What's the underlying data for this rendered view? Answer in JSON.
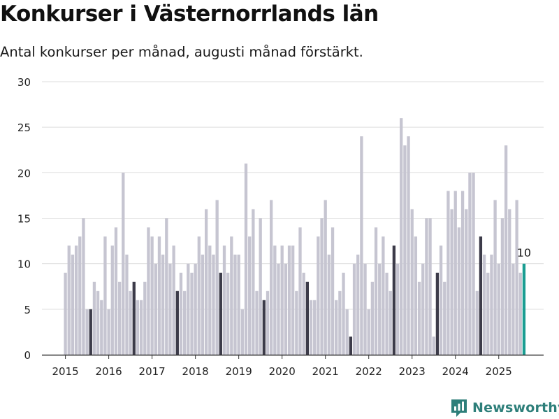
{
  "header": {
    "title": "Konkurser i Västernorrlands län",
    "subtitle": "Antal konkurser per månad, augusti månad förstärkt."
  },
  "brand": {
    "name": "Newsworthy"
  },
  "colors": {
    "bar": "#c6c5d1",
    "highlight": "#3c3b49",
    "latest": "#1a9d92",
    "grid": "#dcdcdc",
    "axis": "#333333",
    "brand": "#2e7f7a"
  },
  "chart_data": {
    "type": "bar",
    "title": "Konkurser i Västernorrlands län",
    "subtitle": "Antal konkurser per månad, augusti månad förstärkt.",
    "xlabel": "",
    "ylabel": "",
    "ylim": [
      0,
      30
    ],
    "yticks": [
      0,
      5,
      10,
      15,
      20,
      25,
      30
    ],
    "grid": true,
    "legend": "none",
    "start_month": "2015-01",
    "highlight_month": "augusti",
    "x_tick_labels": [
      "2015",
      "2016",
      "2017",
      "2018",
      "2019",
      "2020",
      "2021",
      "2022",
      "2023",
      "2024",
      "2025"
    ],
    "annotation": {
      "month": "2025-08",
      "label": "10"
    },
    "categories": [
      "2015-01",
      "2015-02",
      "2015-03",
      "2015-04",
      "2015-05",
      "2015-06",
      "2015-07",
      "2015-08",
      "2015-09",
      "2015-10",
      "2015-11",
      "2015-12",
      "2016-01",
      "2016-02",
      "2016-03",
      "2016-04",
      "2016-05",
      "2016-06",
      "2016-07",
      "2016-08",
      "2016-09",
      "2016-10",
      "2016-11",
      "2016-12",
      "2017-01",
      "2017-02",
      "2017-03",
      "2017-04",
      "2017-05",
      "2017-06",
      "2017-07",
      "2017-08",
      "2017-09",
      "2017-10",
      "2017-11",
      "2017-12",
      "2018-01",
      "2018-02",
      "2018-03",
      "2018-04",
      "2018-05",
      "2018-06",
      "2018-07",
      "2018-08",
      "2018-09",
      "2018-10",
      "2018-11",
      "2018-12",
      "2019-01",
      "2019-02",
      "2019-03",
      "2019-04",
      "2019-05",
      "2019-06",
      "2019-07",
      "2019-08",
      "2019-09",
      "2019-10",
      "2019-11",
      "2019-12",
      "2020-01",
      "2020-02",
      "2020-03",
      "2020-04",
      "2020-05",
      "2020-06",
      "2020-07",
      "2020-08",
      "2020-09",
      "2020-10",
      "2020-11",
      "2020-12",
      "2021-01",
      "2021-02",
      "2021-03",
      "2021-04",
      "2021-05",
      "2021-06",
      "2021-07",
      "2021-08",
      "2021-09",
      "2021-10",
      "2021-11",
      "2021-12",
      "2022-01",
      "2022-02",
      "2022-03",
      "2022-04",
      "2022-05",
      "2022-06",
      "2022-07",
      "2022-08",
      "2022-09",
      "2022-10",
      "2022-11",
      "2022-12",
      "2023-01",
      "2023-02",
      "2023-03",
      "2023-04",
      "2023-05",
      "2023-06",
      "2023-07",
      "2023-08",
      "2023-09",
      "2023-10",
      "2023-11",
      "2023-12",
      "2024-01",
      "2024-02",
      "2024-03",
      "2024-04",
      "2024-05",
      "2024-06",
      "2024-07",
      "2024-08",
      "2024-09",
      "2024-10",
      "2024-11",
      "2024-12",
      "2025-01",
      "2025-02",
      "2025-03",
      "2025-04",
      "2025-05",
      "2025-06",
      "2025-07",
      "2025-08"
    ],
    "values": [
      9,
      12,
      11,
      12,
      13,
      15,
      5,
      5,
      8,
      7,
      6,
      13,
      5,
      12,
      14,
      8,
      20,
      11,
      7,
      8,
      6,
      6,
      8,
      14,
      13,
      10,
      13,
      11,
      15,
      10,
      12,
      7,
      9,
      7,
      10,
      9,
      10,
      13,
      11,
      16,
      12,
      11,
      17,
      9,
      12,
      9,
      13,
      11,
      11,
      5,
      21,
      13,
      16,
      7,
      15,
      6,
      7,
      17,
      12,
      10,
      12,
      10,
      12,
      12,
      7,
      14,
      9,
      8,
      6,
      6,
      13,
      15,
      17,
      11,
      14,
      6,
      7,
      9,
      5,
      2,
      10,
      11,
      24,
      10,
      5,
      8,
      14,
      10,
      13,
      9,
      7,
      12,
      10,
      26,
      23,
      24,
      16,
      13,
      8,
      10,
      15,
      15,
      2,
      9,
      12,
      8,
      18,
      16,
      18,
      14,
      18,
      16,
      20,
      20,
      7,
      13,
      11,
      9,
      11,
      17,
      10,
      15,
      23,
      16,
      10,
      17,
      9,
      10
    ]
  }
}
